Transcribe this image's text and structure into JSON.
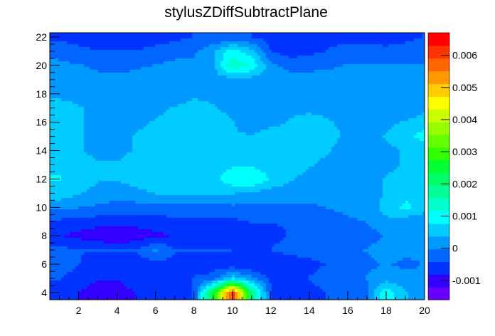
{
  "chart_data": {
    "type": "heatmap",
    "title": "stylusZDiffSubtractPlane",
    "xlabel": "",
    "ylabel": "",
    "xlim": [
      0.5,
      20
    ],
    "ylim": [
      3.5,
      22.3
    ],
    "x_ticks": [
      "2",
      "4",
      "6",
      "8",
      "10",
      "12",
      "14",
      "16",
      "18",
      "20"
    ],
    "y_ticks": [
      "4",
      "6",
      "8",
      "10",
      "12",
      "14",
      "16",
      "18",
      "20",
      "22"
    ],
    "colorbar": {
      "range": [
        -0.0016,
        0.0067
      ],
      "ticks": [
        "-0.001",
        "0",
        "0.001",
        "0.002",
        "0.003",
        "0.004",
        "0.005",
        "0.006"
      ]
    },
    "palette": [
      "#6600ff",
      "#3300ff",
      "#0033ff",
      "#0066ff",
      "#0099ff",
      "#00ccff",
      "#00ffff",
      "#00ffcc",
      "#00ff99",
      "#00ff66",
      "#00ff33",
      "#33ff00",
      "#66ff00",
      "#99ff00",
      "#ccff00",
      "#ffff00",
      "#ffcc00",
      "#ff9900",
      "#ff6600",
      "#ff3300",
      "#ff0000"
    ],
    "grid": false,
    "legend": "colorbar-right",
    "description_note": "",
    "x": [
      1,
      2,
      3,
      4,
      5,
      6,
      7,
      8,
      9,
      10,
      11,
      12,
      13,
      14,
      15,
      16,
      17,
      18,
      19,
      20
    ],
    "y": [
      4,
      5,
      6,
      7,
      8,
      9,
      10,
      11,
      12,
      13,
      14,
      15,
      16,
      17,
      18,
      19,
      20,
      21,
      22
    ],
    "z": [
      [
        -0.0005,
        -0.0008,
        -0.001,
        -0.0009,
        -0.0008,
        -0.0008,
        -0.0007,
        -0.0004,
        0.0025,
        0.0062,
        0.002,
        -0.0004,
        -0.0007,
        -0.0005,
        -0.0004,
        -0.0003,
        -0.0001,
        0.0011,
        0.0004,
        0.0001
      ],
      [
        -0.0004,
        -0.0006,
        -0.0008,
        -0.0008,
        -0.0007,
        -0.0007,
        -0.0006,
        -0.0004,
        -0.0003,
        0.0006,
        0.0001,
        -0.0005,
        -0.0006,
        -0.0004,
        -0.0003,
        -0.0002,
        0.0,
        0.0002,
        0.0001,
        0.0
      ],
      [
        -0.0002,
        -0.0004,
        -0.0006,
        -0.0007,
        -0.0006,
        -0.0006,
        -0.0005,
        -0.0005,
        -0.0006,
        -0.0007,
        -0.0008,
        -0.0008,
        -0.0006,
        -0.0005,
        -0.0004,
        -0.0002,
        -0.0001,
        0.0,
        -0.0001,
        0.0
      ],
      [
        -0.0003,
        -0.0004,
        -0.0004,
        -0.0004,
        -0.0004,
        0.0001,
        -0.0004,
        -0.0004,
        -0.0004,
        -0.0004,
        -0.0005,
        -0.0004,
        -0.0003,
        -0.0003,
        -0.0002,
        -0.0001,
        0.0,
        0.0002,
        0.0001,
        0.0
      ],
      [
        -0.0008,
        -0.0009,
        -0.0011,
        -0.0012,
        -0.0011,
        -0.0009,
        -0.0008,
        -0.0007,
        -0.0007,
        -0.0006,
        -0.0006,
        -0.0005,
        -0.0004,
        -0.0004,
        -0.0004,
        -0.0003,
        -0.0002,
        0.0,
        0.0,
        0.0001
      ],
      [
        -0.0005,
        -0.0006,
        -0.0006,
        -0.0006,
        -0.0006,
        -0.0006,
        -0.0005,
        -0.0005,
        -0.0005,
        -0.0005,
        -0.0004,
        -0.0004,
        -0.0004,
        -0.0003,
        -0.0002,
        -0.0001,
        0.0,
        0.0003,
        0.0001,
        0.0
      ],
      [
        0.0001,
        0.0,
        -0.0001,
        -0.0002,
        -0.0002,
        -0.0002,
        -0.0002,
        -0.0002,
        -0.0002,
        -0.0001,
        -0.0001,
        -0.0001,
        -0.0001,
        -0.0001,
        0.0,
        0.0001,
        0.0002,
        0.0005,
        0.0009,
        0.0006
      ],
      [
        0.0006,
        0.0004,
        0.0003,
        0.0002,
        0.0003,
        0.0004,
        0.0004,
        0.0004,
        0.0004,
        0.0004,
        0.0003,
        0.0002,
        0.0002,
        0.0002,
        0.0002,
        0.0002,
        0.0002,
        0.0004,
        0.0006,
        0.0005
      ],
      [
        0.0008,
        0.0005,
        0.0004,
        0.0004,
        0.0005,
        0.0005,
        0.0005,
        0.0005,
        0.0006,
        0.0011,
        0.0012,
        0.0007,
        0.0004,
        0.0003,
        0.0002,
        0.0002,
        0.0003,
        0.0004,
        0.0005,
        0.0004
      ],
      [
        0.0007,
        0.0005,
        0.0004,
        0.0004,
        0.0005,
        0.0006,
        0.0006,
        0.0006,
        0.0006,
        0.0007,
        0.0007,
        0.0006,
        0.0005,
        0.0004,
        0.0003,
        0.0002,
        0.0002,
        0.0003,
        0.0004,
        0.0004
      ],
      [
        0.0004,
        0.0004,
        0.0003,
        0.0003,
        0.0004,
        0.0005,
        0.0006,
        0.0006,
        0.0006,
        0.0006,
        0.0006,
        0.0005,
        0.0004,
        0.0005,
        0.0004,
        0.0002,
        0.0002,
        0.0003,
        0.0004,
        0.0004
      ],
      [
        0.0006,
        0.0004,
        0.0003,
        0.0003,
        0.0004,
        0.0005,
        0.0006,
        0.0006,
        0.0005,
        0.0004,
        0.0004,
        0.0005,
        0.0005,
        0.0006,
        0.0005,
        0.0003,
        0.0003,
        0.0004,
        0.0006,
        0.001
      ],
      [
        0.0006,
        0.0004,
        0.0003,
        0.0003,
        0.0003,
        0.0004,
        0.0005,
        0.0006,
        0.0005,
        0.0004,
        0.0002,
        0.0003,
        0.0004,
        0.0005,
        0.0004,
        0.0003,
        0.0002,
        0.0003,
        0.0004,
        0.0005
      ],
      [
        0.0005,
        0.0004,
        0.0003,
        0.0003,
        0.0003,
        0.0003,
        0.0004,
        0.0005,
        0.0004,
        0.0003,
        0.0002,
        0.0002,
        0.0003,
        0.0003,
        0.0003,
        0.0002,
        0.0002,
        0.0002,
        0.0002,
        0.0003
      ],
      [
        0.0003,
        0.0003,
        0.0002,
        0.0002,
        0.0002,
        0.0002,
        0.0002,
        0.0003,
        0.0003,
        0.0002,
        0.0002,
        0.0002,
        0.0002,
        0.0003,
        0.0003,
        0.0002,
        0.0001,
        0.0001,
        0.0001,
        0.0001
      ],
      [
        0.0002,
        0.0002,
        0.0001,
        0.0001,
        0.0002,
        0.0002,
        0.0002,
        0.0002,
        0.0002,
        0.0002,
        0.0002,
        0.0002,
        0.0002,
        0.0002,
        0.0002,
        0.0002,
        0.0001,
        0.0001,
        0.0001,
        0.0001
      ],
      [
        0.0001,
        0.0,
        -0.0001,
        -0.0002,
        -0.0001,
        0.0,
        0.0001,
        0.0001,
        0.0003,
        0.0015,
        0.0011,
        0.0001,
        -0.0002,
        -0.0002,
        -0.0001,
        0.0,
        0.0,
        0.0,
        0.0,
        0.0
      ],
      [
        -0.0002,
        -0.0003,
        -0.0004,
        -0.0004,
        -0.0004,
        -0.0003,
        -0.0002,
        -0.0001,
        0.0003,
        0.001,
        0.0005,
        -0.0004,
        -0.0006,
        -0.0005,
        -0.0004,
        -0.0003,
        -0.0003,
        -0.0003,
        -0.0003,
        -0.0002
      ],
      [
        -0.0005,
        -0.0006,
        -0.0007,
        -0.0007,
        -0.0006,
        -0.0006,
        -0.0005,
        -0.0004,
        -0.0004,
        -0.0004,
        -0.0004,
        -0.0006,
        -0.0007,
        -0.0006,
        -0.0005,
        -0.0005,
        -0.0005,
        -0.0006,
        -0.0005,
        -0.0004
      ]
    ]
  }
}
